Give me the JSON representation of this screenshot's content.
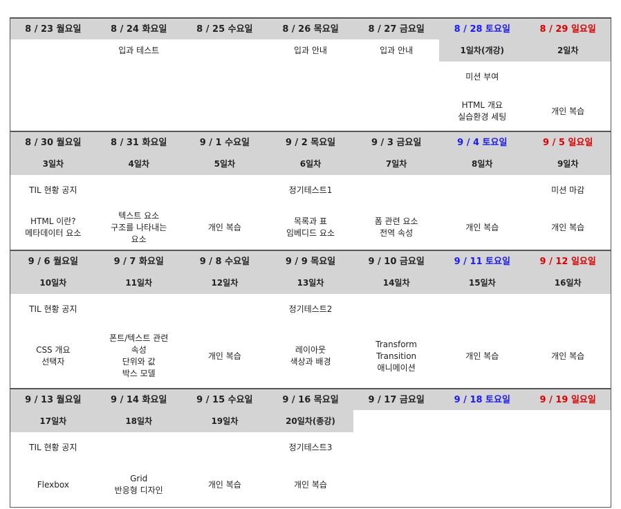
{
  "weeks": [
    {
      "days": [
        {
          "date": "8 / 23 월요일",
          "lesson": "",
          "note": "",
          "content": []
        },
        {
          "date": "8 / 24 화요일",
          "lesson": "입과 테스트",
          "note": "",
          "content": []
        },
        {
          "date": "8 / 25 수요일",
          "lesson": "",
          "note": "",
          "content": []
        },
        {
          "date": "8 / 26 목요일",
          "lesson": "입과 안내",
          "note": "",
          "content": []
        },
        {
          "date": "8 / 27 금요일",
          "lesson": "입과 안내",
          "note": "",
          "content": []
        },
        {
          "date": "8 / 28 토요일",
          "lesson": "1일차(개강)",
          "note": "미션 부여",
          "content": [
            "HTML 개요",
            "실습환경 세팅"
          ]
        },
        {
          "date": "8 / 29 일요일",
          "lesson": "2일차",
          "note": "",
          "content": [
            "개인 복습"
          ]
        }
      ]
    },
    {
      "days": [
        {
          "date": "8 / 30 월요일",
          "lesson": "3일차",
          "note": "TIL 현황 공지",
          "content": [
            "HTML 이란?",
            "메타데이터 요소"
          ]
        },
        {
          "date": "8 / 31 화요일",
          "lesson": "4일차",
          "note": "",
          "content": [
            "텍스트 요소",
            "구조를 나타내는",
            "요소"
          ]
        },
        {
          "date": "9 / 1 수요일",
          "lesson": "5일차",
          "note": "",
          "content": [
            "개인 복습"
          ]
        },
        {
          "date": "9 / 2 목요일",
          "lesson": "6일차",
          "note": "정기테스트1",
          "content": [
            "목록과 표",
            "임베디드 요소"
          ]
        },
        {
          "date": "9 / 3 금요일",
          "lesson": "7일차",
          "note": "",
          "content": [
            "폼 관련 요소",
            "전역 속성"
          ]
        },
        {
          "date": "9 / 4 토요일",
          "lesson": "8일차",
          "note": "",
          "content": [
            "개인 복습"
          ]
        },
        {
          "date": "9 / 5 일요일",
          "lesson": "9일차",
          "note": "미션 마감",
          "content": [
            "개인 복습"
          ]
        }
      ]
    },
    {
      "days": [
        {
          "date": "9 / 6 월요일",
          "lesson": "10일차",
          "note": "TIL 현황 공지",
          "content": [
            "CSS 개요",
            "선택자"
          ]
        },
        {
          "date": "9 / 7 화요일",
          "lesson": "11일차",
          "note": "",
          "content": [
            "폰트/텍스트 관련",
            "속성",
            "단위와 값",
            "박스 모델"
          ]
        },
        {
          "date": "9 / 8 수요일",
          "lesson": "12일차",
          "note": "",
          "content": [
            "개인 복습"
          ]
        },
        {
          "date": "9 / 9 목요일",
          "lesson": "13일차",
          "note": "정기테스트2",
          "content": [
            "레이아웃",
            "색상과 배경"
          ]
        },
        {
          "date": "9 / 10 금요일",
          "lesson": "14일차",
          "note": "",
          "content": [
            "Transform",
            "Transition",
            "애니메이션"
          ]
        },
        {
          "date": "9 / 11 토요일",
          "lesson": "15일차",
          "note": "",
          "content": [
            "개인 복습"
          ]
        },
        {
          "date": "9 / 12 일요일",
          "lesson": "16일차",
          "note": "",
          "content": [
            "개인 복습"
          ]
        }
      ]
    },
    {
      "days": [
        {
          "date": "9 / 13 월요일",
          "lesson": "17일차",
          "note": "TIL 현황 공지",
          "content": [
            "Flexbox"
          ]
        },
        {
          "date": "9 / 14 화요일",
          "lesson": "18일차",
          "note": "",
          "content": [
            "Grid",
            "반응형 디자인"
          ]
        },
        {
          "date": "9 / 15 수요일",
          "lesson": "19일차",
          "note": "",
          "content": [
            "개인 복습"
          ]
        },
        {
          "date": "9 / 16 목요일",
          "lesson": "20일차(종강)",
          "note": "정기테스트3",
          "content": [
            "개인 복습"
          ]
        },
        {
          "date": "9 / 17 금요일",
          "lesson": "",
          "note": "",
          "content": []
        },
        {
          "date": "9 / 18 토요일",
          "lesson": "",
          "note": "",
          "content": []
        },
        {
          "date": "9 / 19 일요일",
          "lesson": "",
          "note": "",
          "content": []
        }
      ]
    }
  ],
  "colors": {
    "saturday": "#1a1aff",
    "sunday": "#e00000",
    "header_bg": "#d4d4d4"
  }
}
